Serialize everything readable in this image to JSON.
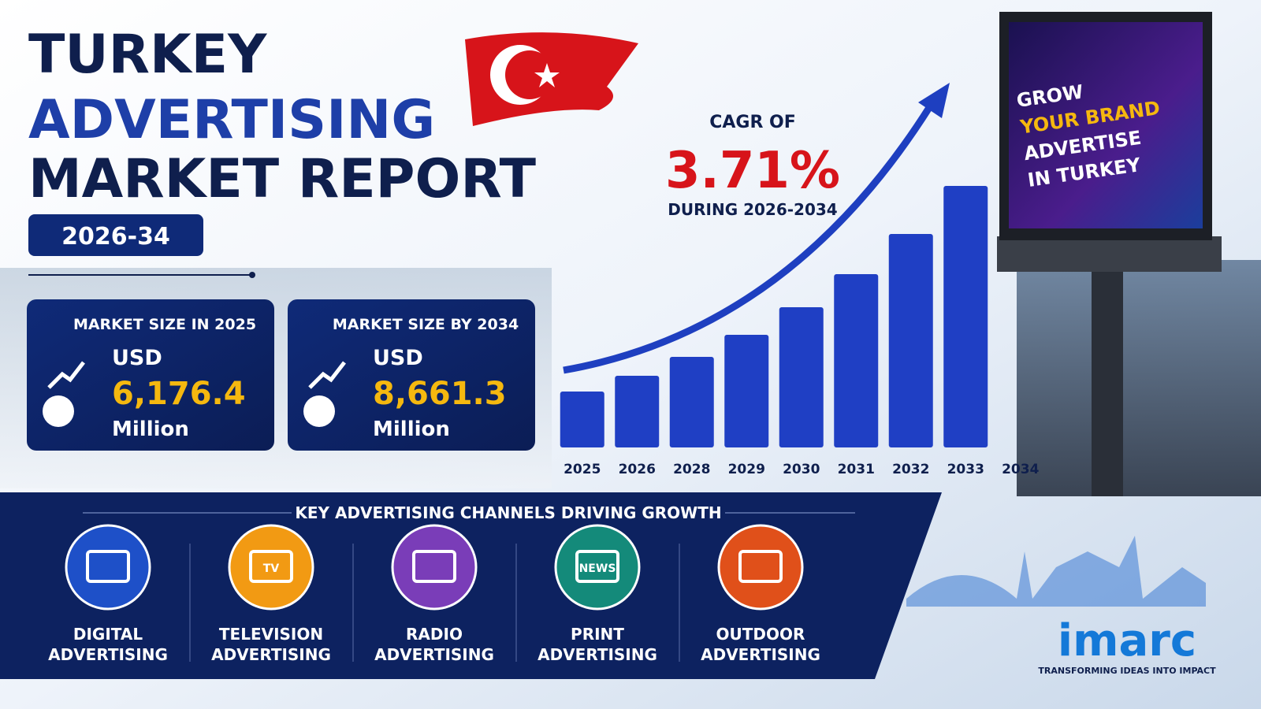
{
  "header": {
    "title_lines": [
      "TURKEY",
      "ADVERTISING",
      "MARKET REPORT"
    ],
    "period": "2026-34"
  },
  "cagr": {
    "prefix": "CAGR OF",
    "value": "3.71%",
    "period": "DURING 2026-2034"
  },
  "market_size": [
    {
      "label": "MARKET SIZE IN 2025",
      "currency": "USD",
      "amount": "6,176.4",
      "unit": "Million"
    },
    {
      "label": "MARKET SIZE BY 2034",
      "currency": "USD",
      "amount": "8,661.3",
      "unit": "Million"
    }
  ],
  "chart_data": {
    "type": "bar",
    "categories": [
      "2025",
      "2026",
      "2028",
      "2029",
      "2030",
      "2031",
      "2032",
      "2033",
      "2034"
    ],
    "values": [
      71,
      91,
      115,
      143,
      178,
      220,
      271,
      332,
      null
    ],
    "ylim": [
      0,
      350
    ],
    "color": "#1f3fc4"
  },
  "billboard": {
    "lines": [
      "GROW",
      "YOUR BRAND",
      "ADVERTISE",
      "IN TURKEY"
    ]
  },
  "channels": {
    "title": "KEY ADVERTISING CHANNELS DRIVING GROWTH",
    "items": [
      {
        "label": [
          "DIGITAL",
          "ADVERTISING"
        ],
        "color": "#1e50c8"
      },
      {
        "label": [
          "TELEVISION",
          "ADVERTISING"
        ],
        "color": "#f29a13",
        "icon_text": "TV"
      },
      {
        "label": [
          "RADIO",
          "ADVERTISING"
        ],
        "color": "#7a3db8"
      },
      {
        "label": [
          "PRINT",
          "ADVERTISING"
        ],
        "color": "#148a7a",
        "icon_text": "NEWS"
      },
      {
        "label": [
          "OUTDOOR",
          "ADVERTISING"
        ],
        "color": "#e0501a"
      }
    ]
  },
  "brand": {
    "name": "imarc",
    "tagline": "TRANSFORMING IDEAS INTO IMPACT"
  }
}
